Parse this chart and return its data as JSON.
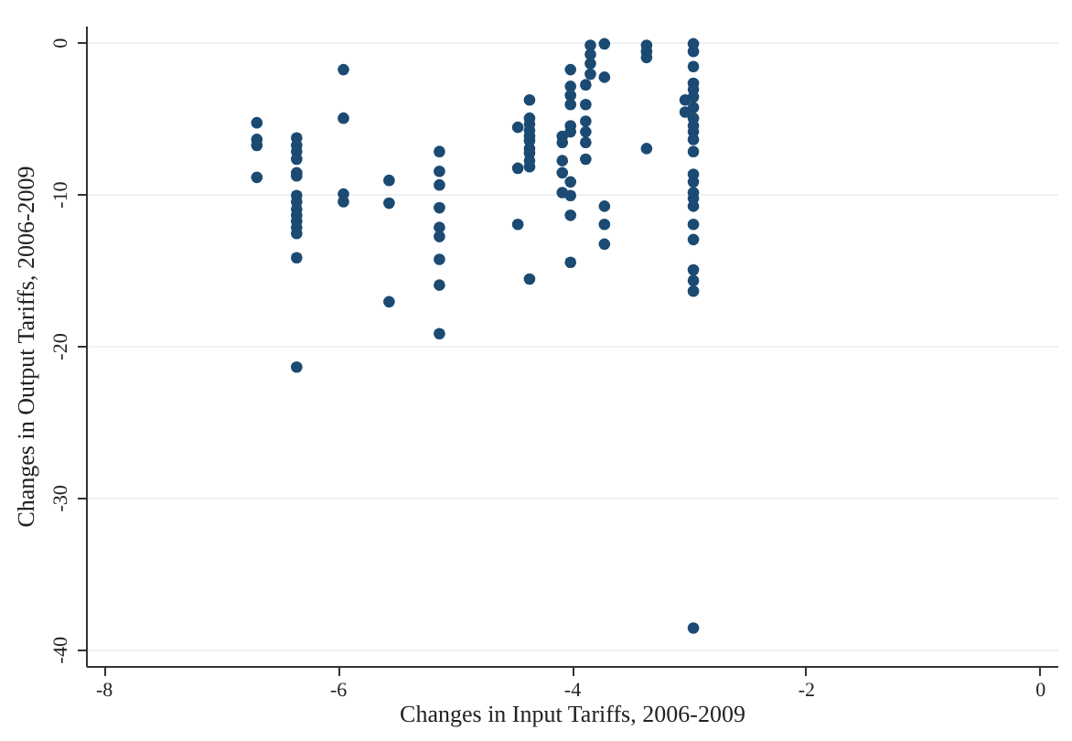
{
  "chart_data": {
    "type": "scatter",
    "xlabel": "Changes in Input Tariffs, 2006-2009",
    "ylabel": "Changes in Output Tariffs, 2006-2009",
    "xlim": [
      -8.15,
      0.15
    ],
    "ylim": [
      -41.1,
      1.1
    ],
    "xticks": [
      -8,
      -6,
      -4,
      -2,
      0
    ],
    "yticks": [
      -40,
      -30,
      -20,
      -10,
      0
    ],
    "grid": "y",
    "marker": "circle",
    "series": [
      {
        "color": "#1b4a73",
        "x": [
          -6.69,
          -6.69,
          -6.69,
          -6.69,
          -6.35,
          -6.35,
          -6.35,
          -6.35,
          -6.35,
          -6.35,
          -6.35,
          -6.35,
          -6.35,
          -6.35,
          -6.35,
          -6.35,
          -6.35,
          -6.35,
          -6.35,
          -5.95,
          -5.95,
          -5.95,
          -5.95,
          -5.56,
          -5.56,
          -5.56,
          -5.13,
          -5.13,
          -5.13,
          -5.13,
          -5.13,
          -5.13,
          -5.13,
          -5.13,
          -5.13,
          -4.46,
          -4.46,
          -4.46,
          -4.36,
          -4.36,
          -4.36,
          -4.36,
          -4.36,
          -4.36,
          -4.36,
          -4.36,
          -4.36,
          -4.36,
          -4.36,
          -4.08,
          -4.08,
          -4.08,
          -4.08,
          -4.08,
          -4.01,
          -4.01,
          -4.01,
          -4.01,
          -4.01,
          -4.01,
          -4.01,
          -4.01,
          -4.01,
          -4.01,
          -3.88,
          -3.88,
          -3.88,
          -3.88,
          -3.88,
          -3.88,
          -3.84,
          -3.84,
          -3.84,
          -3.84,
          -3.72,
          -3.72,
          -3.72,
          -3.72,
          -3.72,
          -3.36,
          -3.36,
          -3.36,
          -3.36,
          -3.03,
          -3.03,
          -2.96,
          -2.96,
          -2.96,
          -2.96,
          -2.96,
          -2.96,
          -2.96,
          -2.96,
          -2.96,
          -2.96,
          -2.96,
          -2.96,
          -2.96,
          -2.96,
          -2.96,
          -2.96,
          -2.96,
          -2.96,
          -2.96,
          -2.96,
          -2.96,
          -2.96,
          -2.96
        ],
        "values": [
          -5.3,
          -6.4,
          -6.8,
          -8.9,
          -6.3,
          -6.8,
          -7.2,
          -7.7,
          -8.6,
          -8.8,
          -10.1,
          -10.5,
          -11.0,
          -11.4,
          -11.8,
          -12.2,
          -12.6,
          -14.2,
          -21.4,
          -1.8,
          -5.0,
          -10.0,
          -10.5,
          -9.1,
          -10.6,
          -17.1,
          -7.2,
          -8.5,
          -9.4,
          -10.9,
          -12.2,
          -12.8,
          -14.3,
          -16.0,
          -19.2,
          -5.6,
          -8.3,
          -12.0,
          -3.8,
          -5.0,
          -5.4,
          -5.8,
          -6.2,
          -6.5,
          -7.0,
          -7.3,
          -7.8,
          -8.2,
          -15.6,
          -6.2,
          -6.6,
          -7.8,
          -8.6,
          -9.9,
          -1.8,
          -2.9,
          -3.5,
          -4.1,
          -5.5,
          -5.9,
          -9.2,
          -10.1,
          -11.4,
          -14.5,
          -2.8,
          -4.1,
          -5.2,
          -5.9,
          -6.6,
          -7.7,
          -0.2,
          -0.8,
          -1.4,
          -2.1,
          -0.1,
          -2.3,
          -10.8,
          -12.0,
          -13.3,
          -0.2,
          -0.6,
          -1.0,
          -7.0,
          -3.8,
          -4.6,
          -0.1,
          -0.6,
          -1.6,
          -2.7,
          -3.1,
          -3.6,
          -4.3,
          -5.0,
          -5.5,
          -5.9,
          -6.4,
          -7.2,
          -8.7,
          -9.2,
          -9.9,
          -10.3,
          -10.8,
          -12.0,
          -13.0,
          -15.0,
          -15.7,
          -16.4,
          -38.6
        ]
      }
    ]
  }
}
